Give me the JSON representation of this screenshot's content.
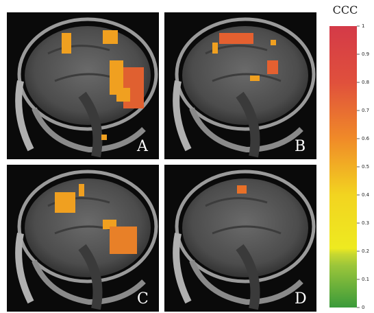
{
  "panels": [
    {
      "label": "A"
    },
    {
      "label": "B"
    },
    {
      "label": "C"
    },
    {
      "label": "D"
    }
  ],
  "colorbar": {
    "title": "CCC",
    "lim": [
      0,
      1
    ],
    "ticks": [
      0,
      0.1,
      0.2,
      0.3,
      0.4,
      0.5,
      0.6,
      0.7,
      0.8,
      0.9,
      1
    ]
  }
}
